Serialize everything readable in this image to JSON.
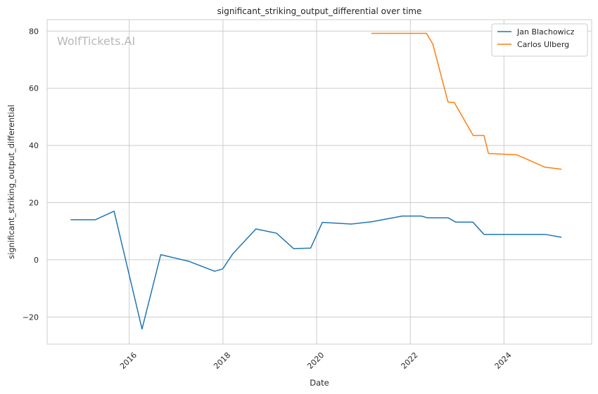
{
  "chart_data": {
    "type": "line",
    "title": "significant_striking_output_differential over time",
    "xlabel": "Date",
    "ylabel": "significant_striking_output_differential",
    "watermark": "WolfTickets.AI",
    "xlim": [
      "2014-04-01",
      "2025-11-15"
    ],
    "ylim": [
      -29.5,
      84
    ],
    "x_ticks": [
      {
        "date": "2016-01-01",
        "label": "2016"
      },
      {
        "date": "2018-01-01",
        "label": "2018"
      },
      {
        "date": "2020-01-01",
        "label": "2020"
      },
      {
        "date": "2022-01-01",
        "label": "2022"
      },
      {
        "date": "2024-01-01",
        "label": "2024"
      }
    ],
    "y_ticks": [
      {
        "value": -20,
        "label": "−20"
      },
      {
        "value": 0,
        "label": "0"
      },
      {
        "value": 20,
        "label": "20"
      },
      {
        "value": 40,
        "label": "40"
      },
      {
        "value": 60,
        "label": "60"
      },
      {
        "value": 80,
        "label": "80"
      }
    ],
    "grid": true,
    "legend_position": "top-right",
    "series": [
      {
        "name": "Jan Blachowicz",
        "color": "#1f77b4",
        "points": [
          {
            "x": "2014-10-04",
            "y": 14.0
          },
          {
            "x": "2015-04-11",
            "y": 14.0
          },
          {
            "x": "2015-09-05",
            "y": 17.0
          },
          {
            "x": "2016-04-10",
            "y": -24.2
          },
          {
            "x": "2016-09-03",
            "y": 1.8
          },
          {
            "x": "2017-04-08",
            "y": -0.5
          },
          {
            "x": "2017-10-28",
            "y": -4.0
          },
          {
            "x": "2017-12-30",
            "y": -3.2
          },
          {
            "x": "2018-03-17",
            "y": 2.0
          },
          {
            "x": "2018-09-15",
            "y": 10.8
          },
          {
            "x": "2019-02-23",
            "y": 9.3
          },
          {
            "x": "2019-07-06",
            "y": 3.9
          },
          {
            "x": "2019-11-16",
            "y": 4.1
          },
          {
            "x": "2020-02-15",
            "y": 13.1
          },
          {
            "x": "2020-09-27",
            "y": 12.5
          },
          {
            "x": "2021-03-06",
            "y": 13.3
          },
          {
            "x": "2021-10-30",
            "y": 15.3
          },
          {
            "x": "2022-03-26",
            "y": 15.3
          },
          {
            "x": "2022-05-14",
            "y": 14.7
          },
          {
            "x": "2022-10-22",
            "y": 14.7
          },
          {
            "x": "2022-12-20",
            "y": 13.2
          },
          {
            "x": "2023-05-03",
            "y": 13.2
          },
          {
            "x": "2023-07-29",
            "y": 8.9
          },
          {
            "x": "2024-02-15",
            "y": 8.9
          },
          {
            "x": "2024-11-16",
            "y": 8.9
          },
          {
            "x": "2025-03-22",
            "y": 7.9
          }
        ]
      },
      {
        "name": "Carlos Ulberg",
        "color": "#ff7f0e",
        "points": [
          {
            "x": "2021-03-06",
            "y": 79.2
          },
          {
            "x": "2021-10-30",
            "y": 79.2
          },
          {
            "x": "2022-05-07",
            "y": 79.2
          },
          {
            "x": "2022-06-25",
            "y": 75.5
          },
          {
            "x": "2022-10-22",
            "y": 55.2
          },
          {
            "x": "2022-12-10",
            "y": 55.0
          },
          {
            "x": "2023-05-06",
            "y": 43.5
          },
          {
            "x": "2023-07-29",
            "y": 43.5
          },
          {
            "x": "2023-09-02",
            "y": 37.2
          },
          {
            "x": "2024-04-13",
            "y": 36.7
          },
          {
            "x": "2024-11-16",
            "y": 32.4
          },
          {
            "x": "2025-03-22",
            "y": 31.7
          }
        ]
      }
    ]
  }
}
